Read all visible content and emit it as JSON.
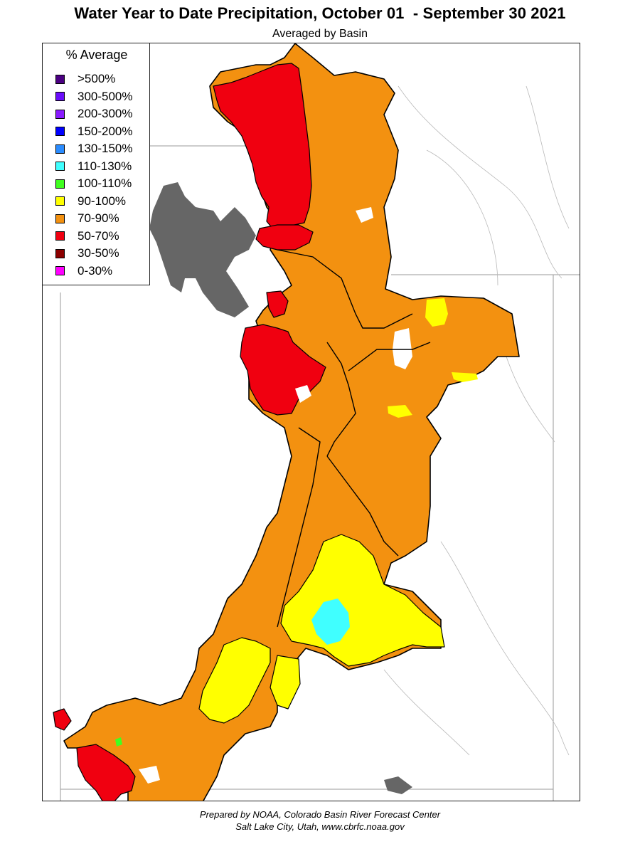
{
  "title": "Water Year to Date Precipitation, October 01  - September 30 2021",
  "subtitle": "Averaged by Basin",
  "legend": {
    "title": "% Average",
    "items": [
      {
        "label": ">500%",
        "color": "#4b0082"
      },
      {
        "label": "300-500%",
        "color": "#6a0dfa"
      },
      {
        "label": "200-300%",
        "color": "#8a1cff"
      },
      {
        "label": "150-200%",
        "color": "#0000ff"
      },
      {
        "label": "130-150%",
        "color": "#2a8cff"
      },
      {
        "label": "110-130%",
        "color": "#40ffff"
      },
      {
        "label": "100-110%",
        "color": "#40ff20"
      },
      {
        "label": "90-100%",
        "color": "#ffff00"
      },
      {
        "label": "70-90%",
        "color": "#f39110"
      },
      {
        "label": "50-70%",
        "color": "#f00010"
      },
      {
        "label": "30-50%",
        "color": "#8b0000"
      },
      {
        "label": "0-30%",
        "color": "#ff00ff"
      }
    ]
  },
  "colors": {
    "lake": "#666666",
    "basin_border": "#000000",
    "river": "#888888",
    "state_line": "#999999"
  },
  "credit": {
    "line1": "Prepared by NOAA, Colorado Basin River Forecast Center",
    "line2": "Salt Lake City, Utah, www.cbrfc.noaa.gov"
  }
}
